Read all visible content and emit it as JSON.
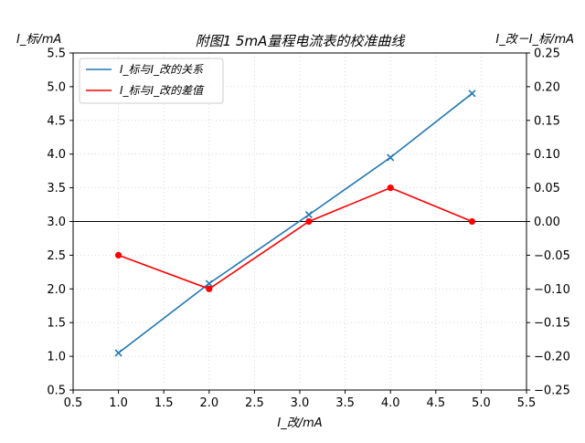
{
  "chart_data": {
    "type": "line",
    "title": "附图1  5mA量程电流表的校准曲线",
    "xlabel": "I_改/mA",
    "ylabel_left": "I_标/mA",
    "ylabel_right": "I_改－I_标/mA",
    "xlim": [
      0.5,
      5.5
    ],
    "ylim_left": [
      0.5,
      5.5
    ],
    "ylim_right": [
      -0.25,
      0.25
    ],
    "x_ticks": [
      "0.5",
      "1.0",
      "1.5",
      "2.0",
      "2.5",
      "3.0",
      "3.5",
      "4.0",
      "4.5",
      "5.0",
      "5.5"
    ],
    "y_left_ticks": [
      "0.5",
      "1.0",
      "1.5",
      "2.0",
      "2.5",
      "3.0",
      "3.5",
      "4.0",
      "4.5",
      "5.0",
      "5.5"
    ],
    "y_right_ticks": [
      "−0.25",
      "−0.20",
      "−0.15",
      "−0.10",
      "−0.05",
      "0.00",
      "0.05",
      "0.10",
      "0.15",
      "0.20",
      "0.25"
    ],
    "grid": true,
    "reference_line_right_axis": 0.0,
    "legend_position": "top-left",
    "series": [
      {
        "name": "I_标与I_改的关系",
        "axis": "left",
        "color": "#1f77b4",
        "marker": "x",
        "x": [
          1.0,
          2.0,
          3.1,
          4.0,
          4.9
        ],
        "y": [
          1.05,
          2.08,
          3.1,
          3.95,
          4.9
        ]
      },
      {
        "name": "I_标与I_改的差值",
        "axis": "right",
        "color": "#ff0000",
        "marker": "circle",
        "x": [
          1.0,
          2.0,
          3.1,
          4.0,
          4.9
        ],
        "y": [
          -0.05,
          -0.1,
          0.0,
          0.05,
          0.0
        ]
      }
    ]
  }
}
